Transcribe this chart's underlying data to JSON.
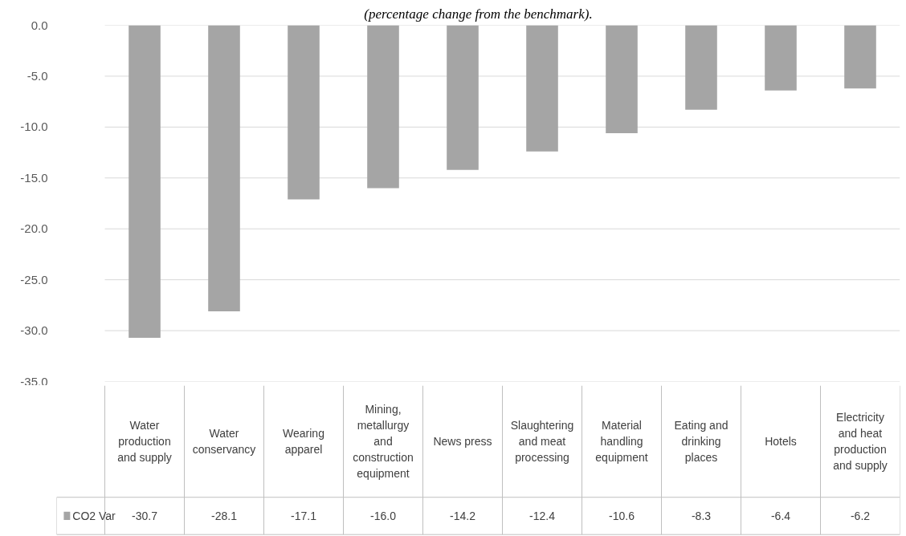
{
  "chart_data": {
    "type": "bar",
    "title": "(percentage change from the benchmark).",
    "categories": [
      "Water production and supply",
      "Water conservancy",
      "Wearing apparel",
      "Mining, metallurgy and construction equipment",
      "News press",
      "Slaughtering and meat processing",
      "Material handling equipment",
      "Eating and drinking places",
      "Hotels",
      "Electricity and heat production and supply"
    ],
    "series": [
      {
        "name": "CO2 Var",
        "color": "#a5a5a5",
        "values": [
          -30.7,
          -28.1,
          -17.1,
          -16.0,
          -14.2,
          -12.4,
          -10.6,
          -8.3,
          -6.4,
          -6.2
        ],
        "value_labels": [
          "-30.7",
          "-28.1",
          "-17.1",
          "-16.0",
          "-14.2",
          "-12.4",
          "-10.6",
          "-8.3",
          "-6.4",
          "-6.2"
        ]
      }
    ],
    "ylim": [
      -35,
      0
    ],
    "yticks": [
      {
        "value": 0,
        "label": "0.0"
      },
      {
        "value": -5,
        "label": "-5.0"
      },
      {
        "value": -10,
        "label": "-10.0"
      },
      {
        "value": -15,
        "label": "-15.0"
      },
      {
        "value": -20,
        "label": "-20.0"
      },
      {
        "value": -25,
        "label": "-25.0"
      },
      {
        "value": -30,
        "label": "-30.0"
      },
      {
        "value": -35,
        "label": "-35.0"
      }
    ],
    "grid": "y"
  }
}
